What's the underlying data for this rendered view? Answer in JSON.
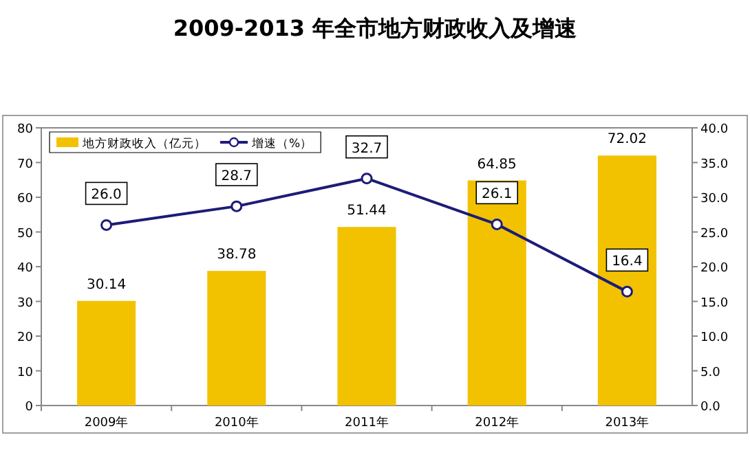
{
  "chart_data": {
    "type": "bar",
    "title": "2009-2013 年全市地方财政收入及增速",
    "categories": [
      "2009年",
      "2010年",
      "2011年",
      "2012年",
      "2013年"
    ],
    "series": [
      {
        "name": "地方财政收入（亿元）",
        "color": "#f2c200",
        "values": [
          30.14,
          38.78,
          51.44,
          64.85,
          72.02
        ],
        "value_labels": [
          "30.14",
          "38.78",
          "51.44",
          "64.85",
          "72.02"
        ]
      },
      {
        "name": "增速（%）",
        "type": "line",
        "axis": "y2",
        "color": "#1c1c78",
        "marker": "circle",
        "values": [
          26.0,
          28.7,
          32.7,
          26.1,
          16.4
        ],
        "value_labels": [
          "26.0",
          "28.7",
          "32.7",
          "26.1",
          "16.4"
        ]
      }
    ],
    "ylim": [
      0,
      80
    ],
    "yticks": [
      0,
      10,
      20,
      30,
      40,
      50,
      60,
      70,
      80
    ],
    "y2lim": [
      0,
      40
    ],
    "y2ticks": [
      {
        "value": 0,
        "label": "0.0"
      },
      {
        "value": 5,
        "label": "5.0"
      },
      {
        "value": 10,
        "label": "10.0"
      },
      {
        "value": 15,
        "label": "15.0"
      },
      {
        "value": 20,
        "label": "20.0"
      },
      {
        "value": 25,
        "label": "25.0"
      },
      {
        "value": 30,
        "label": "30.0"
      },
      {
        "value": 35,
        "label": "35.0"
      },
      {
        "value": 40,
        "label": "40.0"
      }
    ],
    "grid": false,
    "legend": "top left"
  }
}
